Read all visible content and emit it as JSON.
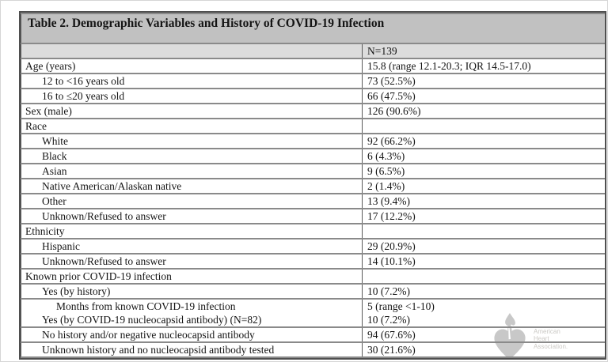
{
  "table": {
    "title": "Table 2. Demographic Variables and History of COVID-19 Infection",
    "header": {
      "col1": "",
      "col2": "N=139"
    },
    "rows": [
      {
        "label": "Age (years)",
        "value": "15.8 (range 12.1-20.3; IQR 14.5-17.0)",
        "indent": 0
      },
      {
        "label": "12 to <16 years old",
        "value": "73 (52.5%)",
        "indent": 1
      },
      {
        "label": "16 to ≤20 years old",
        "value": "66 (47.5%)",
        "indent": 1
      },
      {
        "label": "Sex (male)",
        "value": "126 (90.6%)",
        "indent": 0
      },
      {
        "label": "Race",
        "value": "",
        "indent": 0
      },
      {
        "label": "White",
        "value": "92 (66.2%)",
        "indent": 1
      },
      {
        "label": "Black",
        "value": "6 (4.3%)",
        "indent": 1
      },
      {
        "label": "Asian",
        "value": "9 (6.5%)",
        "indent": 1
      },
      {
        "label": "Native American/Alaskan native",
        "value": "2 (1.4%)",
        "indent": 1
      },
      {
        "label": "Other",
        "value": "13 (9.4%)",
        "indent": 1
      },
      {
        "label": "Unknown/Refused to answer",
        "value": "17 (12.2%)",
        "indent": 1
      },
      {
        "label": "Ethnicity",
        "value": "",
        "indent": 0
      },
      {
        "label": "Hispanic",
        "value": "29 (20.9%)",
        "indent": 1
      },
      {
        "label": "Unknown/Refused to answer",
        "value": "14 (10.1%)",
        "indent": 1
      },
      {
        "label": "Known prior COVID-19 infection",
        "value": "",
        "indent": 0
      },
      {
        "label": "Yes (by history)",
        "value": "10 (7.2%)",
        "indent": 1
      },
      {
        "lines": [
          {
            "label": "Months from known COVID-19 infection",
            "value": "5 (range <1-10)",
            "indent": 2
          },
          {
            "label": "Yes (by COVID-19 nucleocapsid antibody) (N=82)",
            "value": "10 (7.2%)",
            "indent": 1
          }
        ]
      },
      {
        "label": "No history and/or negative nucleocapsid antibody",
        "value": "94 (67.6%)",
        "indent": 1
      },
      {
        "label": "Unknown history and no nucleocapsid antibody tested",
        "value": "30 (21.6%)",
        "indent": 1
      }
    ]
  },
  "colors": {
    "title_bg": "#c1c1c1",
    "header_bg": "#dcdcdc",
    "grid_line": "#8a8a8a",
    "outer_border": "#4f4f4f",
    "watermark_gray": "#c8c8c8"
  },
  "watermark": {
    "lines": [
      "American",
      "Heart",
      "Association."
    ]
  }
}
